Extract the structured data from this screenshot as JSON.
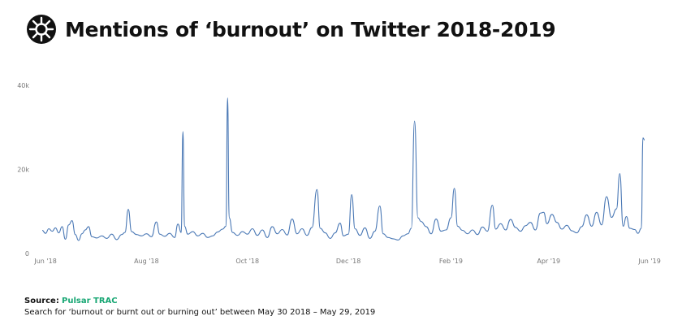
{
  "header": {
    "title": "Mentions of ‘burnout’ on Twitter 2018-2019"
  },
  "footer": {
    "source_label": "Source:",
    "source_value": "Pulsar TRAC",
    "note": "Search for ‘burnout or burnt out or burning out’ between May 30 2018 – May 29, 2019"
  },
  "colors": {
    "line": "#4a78b5",
    "source_accent": "#17a673",
    "logo_bg": "#111111"
  },
  "chart_data": {
    "type": "line",
    "title": "Mentions of ‘burnout’ on Twitter 2018-2019",
    "xlabel": "",
    "ylabel": "",
    "xlim": [
      "2018-05-30",
      "2019-05-30"
    ],
    "ylim": [
      0,
      40000
    ],
    "y_ticks": [
      {
        "value": 0,
        "label": "0"
      },
      {
        "value": 20000,
        "label": "20k"
      },
      {
        "value": 40000,
        "label": "40k"
      }
    ],
    "x_ticks": [
      {
        "date": "2018-06-01",
        "label": "Jun '18"
      },
      {
        "date": "2018-08-01",
        "label": "Aug '18"
      },
      {
        "date": "2018-10-01",
        "label": "Oct '18"
      },
      {
        "date": "2018-12-01",
        "label": "Dec '18"
      },
      {
        "date": "2019-02-01",
        "label": "Feb '19"
      },
      {
        "date": "2019-04-01",
        "label": "Apr '19"
      },
      {
        "date": "2019-06-01",
        "label": "Jun '19"
      }
    ],
    "grid": false,
    "series": [
      {
        "color": "#4a78b5",
        "points": [
          [
            "2018-05-30",
            5500
          ],
          [
            "2018-06-01",
            4800
          ],
          [
            "2018-06-03",
            5900
          ],
          [
            "2018-06-05",
            5300
          ],
          [
            "2018-06-07",
            6100
          ],
          [
            "2018-06-09",
            4900
          ],
          [
            "2018-06-11",
            6400
          ],
          [
            "2018-06-13",
            3400
          ],
          [
            "2018-06-15",
            6800
          ],
          [
            "2018-06-17",
            7800
          ],
          [
            "2018-06-19",
            4500
          ],
          [
            "2018-06-21",
            3100
          ],
          [
            "2018-06-23",
            4700
          ],
          [
            "2018-06-25",
            5600
          ],
          [
            "2018-06-27",
            6400
          ],
          [
            "2018-06-29",
            4000
          ],
          [
            "2018-07-02",
            3700
          ],
          [
            "2018-07-05",
            4200
          ],
          [
            "2018-07-08",
            3600
          ],
          [
            "2018-07-11",
            4600
          ],
          [
            "2018-07-14",
            3300
          ],
          [
            "2018-07-17",
            4500
          ],
          [
            "2018-07-19",
            5000
          ],
          [
            "2018-07-21",
            10500
          ],
          [
            "2018-07-23",
            5200
          ],
          [
            "2018-07-26",
            4500
          ],
          [
            "2018-07-29",
            4200
          ],
          [
            "2018-08-01",
            4700
          ],
          [
            "2018-08-04",
            4000
          ],
          [
            "2018-08-07",
            7500
          ],
          [
            "2018-08-09",
            4600
          ],
          [
            "2018-08-12",
            4100
          ],
          [
            "2018-08-15",
            4800
          ],
          [
            "2018-08-18",
            3800
          ],
          [
            "2018-08-20",
            7000
          ],
          [
            "2018-08-22",
            5000
          ],
          [
            "2018-08-23",
            29000
          ],
          [
            "2018-08-24",
            6500
          ],
          [
            "2018-08-26",
            4600
          ],
          [
            "2018-08-29",
            5200
          ],
          [
            "2018-09-01",
            4200
          ],
          [
            "2018-09-04",
            4800
          ],
          [
            "2018-09-07",
            3800
          ],
          [
            "2018-09-10",
            4200
          ],
          [
            "2018-09-13",
            5100
          ],
          [
            "2018-09-16",
            5800
          ],
          [
            "2018-09-18",
            6500
          ],
          [
            "2018-09-19",
            37000
          ],
          [
            "2018-09-20",
            8500
          ],
          [
            "2018-09-22",
            5000
          ],
          [
            "2018-09-25",
            4300
          ],
          [
            "2018-09-28",
            5200
          ],
          [
            "2018-10-01",
            4600
          ],
          [
            "2018-10-04",
            5900
          ],
          [
            "2018-10-07",
            4300
          ],
          [
            "2018-10-10",
            5600
          ],
          [
            "2018-10-13",
            3800
          ],
          [
            "2018-10-16",
            6400
          ],
          [
            "2018-10-19",
            4700
          ],
          [
            "2018-10-22",
            5700
          ],
          [
            "2018-10-25",
            4400
          ],
          [
            "2018-10-28",
            8200
          ],
          [
            "2018-10-31",
            4700
          ],
          [
            "2018-11-03",
            5900
          ],
          [
            "2018-11-06",
            4300
          ],
          [
            "2018-11-09",
            6200
          ],
          [
            "2018-11-12",
            15200
          ],
          [
            "2018-11-14",
            6000
          ],
          [
            "2018-11-17",
            4900
          ],
          [
            "2018-11-20",
            3600
          ],
          [
            "2018-11-23",
            4900
          ],
          [
            "2018-11-26",
            7200
          ],
          [
            "2018-11-28",
            4200
          ],
          [
            "2018-12-01",
            4600
          ],
          [
            "2018-12-03",
            14000
          ],
          [
            "2018-12-05",
            5900
          ],
          [
            "2018-12-08",
            4300
          ],
          [
            "2018-12-11",
            6100
          ],
          [
            "2018-12-14",
            3600
          ],
          [
            "2018-12-17",
            5300
          ],
          [
            "2018-12-20",
            11300
          ],
          [
            "2018-12-22",
            4700
          ],
          [
            "2018-12-25",
            3800
          ],
          [
            "2018-12-28",
            3500
          ],
          [
            "2018-12-31",
            3200
          ],
          [
            "2019-01-03",
            4200
          ],
          [
            "2019-01-06",
            4700
          ],
          [
            "2019-01-08",
            6000
          ],
          [
            "2019-01-10",
            31500
          ],
          [
            "2019-01-12",
            8500
          ],
          [
            "2019-01-14",
            7600
          ],
          [
            "2019-01-17",
            6400
          ],
          [
            "2019-01-20",
            4700
          ],
          [
            "2019-01-23",
            8200
          ],
          [
            "2019-01-26",
            5300
          ],
          [
            "2019-01-29",
            5600
          ],
          [
            "2019-02-01",
            8500
          ],
          [
            "2019-02-03",
            15500
          ],
          [
            "2019-02-05",
            6500
          ],
          [
            "2019-02-08",
            5500
          ],
          [
            "2019-02-11",
            4700
          ],
          [
            "2019-02-14",
            5600
          ],
          [
            "2019-02-17",
            4500
          ],
          [
            "2019-02-20",
            6300
          ],
          [
            "2019-02-23",
            5300
          ],
          [
            "2019-02-26",
            11500
          ],
          [
            "2019-02-28",
            5800
          ],
          [
            "2019-03-03",
            7100
          ],
          [
            "2019-03-06",
            5600
          ],
          [
            "2019-03-09",
            8100
          ],
          [
            "2019-03-12",
            6200
          ],
          [
            "2019-03-15",
            5300
          ],
          [
            "2019-03-18",
            6600
          ],
          [
            "2019-03-21",
            7400
          ],
          [
            "2019-03-24",
            5600
          ],
          [
            "2019-03-27",
            9600
          ],
          [
            "2019-03-29",
            9800
          ],
          [
            "2019-03-31",
            7100
          ],
          [
            "2019-04-03",
            9300
          ],
          [
            "2019-04-06",
            7400
          ],
          [
            "2019-04-09",
            5800
          ],
          [
            "2019-04-12",
            6700
          ],
          [
            "2019-04-15",
            5400
          ],
          [
            "2019-04-18",
            4900
          ],
          [
            "2019-04-21",
            6400
          ],
          [
            "2019-04-24",
            9200
          ],
          [
            "2019-04-27",
            6500
          ],
          [
            "2019-04-30",
            9800
          ],
          [
            "2019-05-03",
            6800
          ],
          [
            "2019-05-06",
            13500
          ],
          [
            "2019-05-09",
            8600
          ],
          [
            "2019-05-12",
            10600
          ],
          [
            "2019-05-14",
            19000
          ],
          [
            "2019-05-16",
            6500
          ],
          [
            "2019-05-18",
            8800
          ],
          [
            "2019-05-20",
            6000
          ],
          [
            "2019-05-23",
            5700
          ],
          [
            "2019-05-25",
            4800
          ],
          [
            "2019-05-27",
            6000
          ],
          [
            "2019-05-28",
            27500
          ],
          [
            "2019-05-29",
            27000
          ]
        ]
      }
    ]
  }
}
